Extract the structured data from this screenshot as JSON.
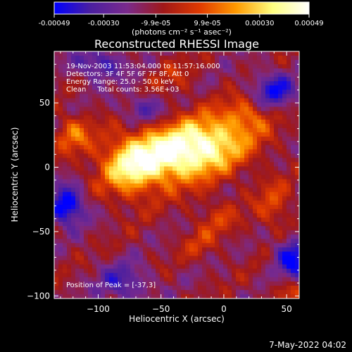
{
  "chart_data": {
    "type": "heatmap",
    "title": "Reconstructed RHESSI Image",
    "xlabel": "Heliocentric X (arcsec)",
    "ylabel": "Heliocentric Y (arcsec)",
    "xlim": [
      -135,
      60
    ],
    "ylim": [
      -102,
      90
    ],
    "x_ticks": [
      -100,
      -50,
      0,
      50
    ],
    "y_ticks": [
      -100,
      -50,
      0,
      50
    ],
    "colorbar": {
      "range": [
        -0.00049,
        0.00049
      ],
      "ticks": [
        "-0.00049",
        "-0.00030",
        "-9.9e-05",
        "9.9e-05",
        "0.00030",
        "0.00049"
      ],
      "tick_values": [
        -0.00049,
        -0.0003,
        -9.9e-05,
        9.9e-05,
        0.0003,
        0.00049
      ],
      "unit_label": "(photons cm⁻² s⁻¹ asec⁻²)",
      "colors": [
        "#0000ff",
        "#4b1fa0",
        "#7a2a8c",
        "#a01818",
        "#e03a00",
        "#ff9a00",
        "#ffff80",
        "#ffffff"
      ]
    },
    "info_lines": [
      "19-Nov-2003 11:53:04.000 to 11:57:16.000",
      "Detectors: 3F 4F 5F 6F 7F 8F, Att 0",
      "Energy Range: 25.0 - 50.0 keV",
      "Clean     Total counts: 3.56E+03"
    ],
    "peak_label": "Position of Peak = [-37,3]",
    "peak": [
      -37,
      3
    ],
    "blobs": [
      {
        "x": -45,
        "y": 8,
        "sx": 30,
        "sy": 15,
        "amp": 0.00052
      },
      {
        "x": -10,
        "y": 22,
        "sx": 24,
        "sy": 14,
        "amp": 0.00036
      },
      {
        "x": -75,
        "y": -4,
        "sx": 16,
        "sy": 16,
        "amp": 0.00028
      },
      {
        "x": 18,
        "y": 40,
        "sx": 14,
        "sy": 10,
        "amp": 0.00022
      },
      {
        "x": -120,
        "y": 26,
        "sx": 10,
        "sy": 10,
        "amp": 0.00024
      },
      {
        "x": -5,
        "y": -40,
        "sx": 12,
        "sy": 10,
        "amp": 0.00014
      },
      {
        "x": 40,
        "y": -30,
        "sx": 10,
        "sy": 14,
        "amp": 0.00018
      },
      {
        "x": -20,
        "y": -60,
        "sx": 10,
        "sy": 8,
        "amp": 0.00012
      },
      {
        "x": 50,
        "y": -97,
        "sx": 8,
        "sy": 6,
        "amp": 0.00016
      },
      {
        "x": -40,
        "y": 70,
        "sx": 12,
        "sy": 10,
        "amp": 0.0001
      },
      {
        "x": -125,
        "y": -30,
        "sx": 10,
        "sy": 10,
        "amp": -0.00045
      },
      {
        "x": 55,
        "y": -70,
        "sx": 10,
        "sy": 10,
        "amp": -0.0004
      },
      {
        "x": 40,
        "y": 60,
        "sx": 12,
        "sy": 10,
        "amp": -0.00032
      },
      {
        "x": -100,
        "y": 80,
        "sx": 14,
        "sy": 8,
        "amp": -0.00028
      },
      {
        "x": -80,
        "y": -90,
        "sx": 14,
        "sy": 10,
        "amp": -0.00025
      },
      {
        "x": -65,
        "y": 45,
        "sx": 12,
        "sy": 8,
        "amp": -0.00022
      }
    ]
  },
  "footer": {
    "timestamp": "7-May-2022 04:02"
  }
}
